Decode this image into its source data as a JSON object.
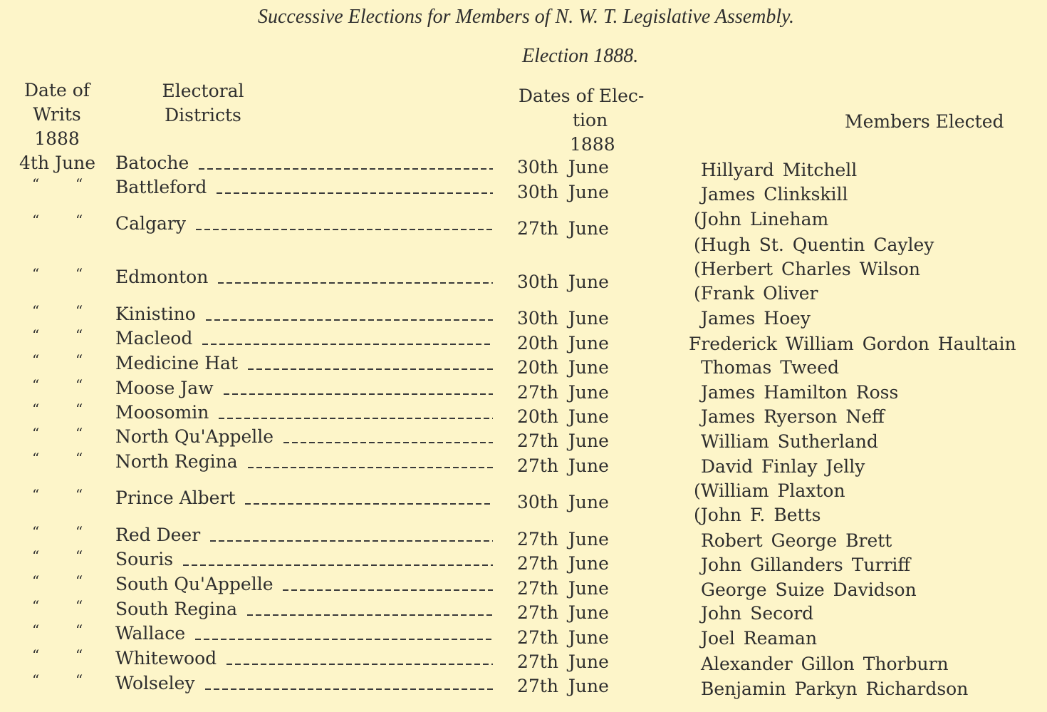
{
  "title": "Successive Elections for Members of N. W. T. Legislative Assembly.",
  "subtitle": "Election 1888.",
  "headers": {
    "writs": [
      "Date of",
      "Writs",
      "1888"
    ],
    "districts": [
      "Electoral",
      "Districts"
    ],
    "election_dates": [
      "Dates of Elec-",
      "tion",
      "1888"
    ],
    "members": "Members Elected"
  },
  "ditto": "“",
  "rows": [
    {
      "writ": "4th June",
      "district": "Batoche",
      "date": "30th June",
      "members": [
        "Hillyard Mitchell"
      ]
    },
    {
      "writ": "ditto",
      "district": "Battleford",
      "date": "30th June",
      "members": [
        "James Clinkskill"
      ]
    },
    {
      "writ": "ditto",
      "district": "Calgary",
      "date": "27th June",
      "members": [
        "(John Lineham",
        "(Hugh St. Quentin Cayley"
      ]
    },
    {
      "writ": "ditto",
      "district": "Edmonton",
      "date": "30th June",
      "members": [
        "(Herbert Charles Wilson",
        "(Frank Oliver"
      ]
    },
    {
      "writ": "ditto",
      "district": "Kinistino",
      "date": "30th June",
      "members": [
        "James Hoey"
      ]
    },
    {
      "writ": "ditto",
      "district": "Macleod",
      "date": "20th June",
      "members": [
        "Frederick William Gordon Haultain"
      ]
    },
    {
      "writ": "ditto",
      "district": "Medicine Hat",
      "date": "20th June",
      "members": [
        "Thomas Tweed"
      ]
    },
    {
      "writ": "ditto",
      "district": "Moose Jaw",
      "date": "27th June",
      "members": [
        "James Hamilton Ross"
      ]
    },
    {
      "writ": "ditto",
      "district": "Moosomin",
      "date": "20th June",
      "members": [
        "James Ryerson Neff"
      ]
    },
    {
      "writ": "ditto",
      "district": "North Qu'Appelle",
      "date": "27th June",
      "members": [
        "William Sutherland"
      ]
    },
    {
      "writ": "ditto",
      "district": "North Regina",
      "date": "27th June",
      "members": [
        "David Finlay Jelly"
      ]
    },
    {
      "writ": "ditto",
      "district": "Prince Albert",
      "date": "30th June",
      "members": [
        "(William Plaxton",
        "(John F. Betts"
      ]
    },
    {
      "writ": "ditto",
      "district": "Red Deer",
      "date": "27th June",
      "members": [
        "Robert George Brett"
      ]
    },
    {
      "writ": "ditto",
      "district": "Souris",
      "date": "27th June",
      "members": [
        "John Gillanders Turriff"
      ]
    },
    {
      "writ": "ditto",
      "district": "South Qu'Appelle",
      "date": "27th June",
      "members": [
        "George Suize Davidson"
      ]
    },
    {
      "writ": "ditto",
      "district": "South Regina",
      "date": "27th June",
      "members": [
        "John Secord"
      ]
    },
    {
      "writ": "ditto",
      "district": "Wallace",
      "date": "27th June",
      "members": [
        "Joel Reaman"
      ]
    },
    {
      "writ": "ditto",
      "district": "Whitewood",
      "date": "27th June",
      "members": [
        "Alexander Gillon Thorburn"
      ]
    },
    {
      "writ": "ditto",
      "district": "Wolseley",
      "date": "27th June",
      "members": [
        "Benjamin Parkyn Richardson"
      ]
    }
  ]
}
